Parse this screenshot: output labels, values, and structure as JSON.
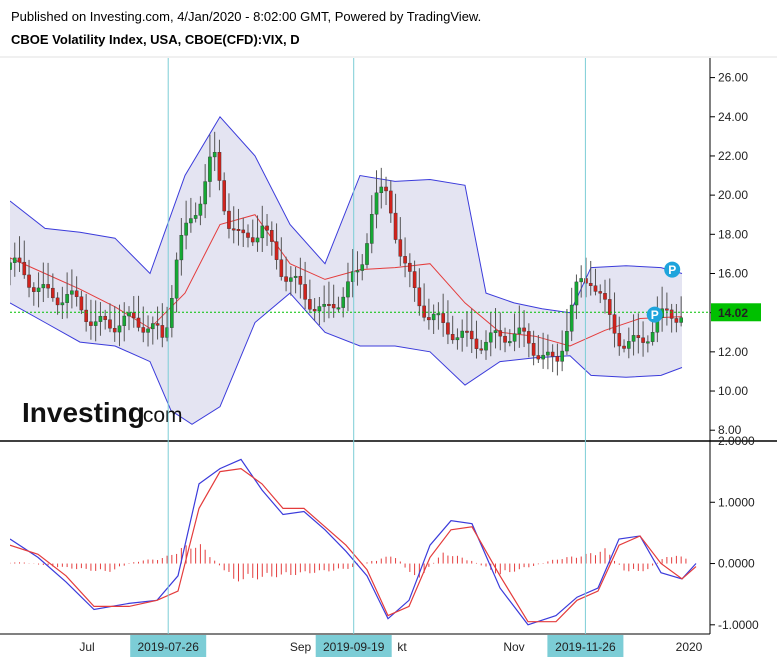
{
  "header": {
    "published": "Published on Investing.com, 4/Jan/2020 - 8:02:00 GMT, Powered by TradingView.",
    "instrument": "CBOE Volatility Index, USA, CBOE(CFD):VIX, D"
  },
  "logo": {
    "brand": "Investing",
    "suffix": ".com"
  },
  "colors": {
    "up": "#16a834",
    "down": "#d0231d",
    "band": "#3b3bdb",
    "band_fill": "#e4e4f2",
    "mid": "#e43c3c",
    "last_price": "#00c000",
    "crosshair": "#7ccdd6",
    "macd": "#3b3bdb",
    "signal": "#e43c3c",
    "p_badge": "#1ea4dc"
  },
  "chart_data": [
    {
      "type": "candlestick",
      "ylim": [
        7.5,
        27
      ],
      "y_ticks": [
        "26.00",
        "24.00",
        "22.00",
        "20.00",
        "18.00",
        "16.00",
        "14.00",
        "12.00",
        "10.00",
        "8.00"
      ],
      "last_price": 14.02,
      "last_price_label": "14.02",
      "annotations": [
        {
          "label": "P",
          "x": 0.946,
          "y": 16.2
        },
        {
          "label": "P",
          "x": 0.921,
          "y": 13.9
        }
      ],
      "series": [
        {
          "name": "close",
          "x": [
            0.0,
            0.04,
            0.08,
            0.12,
            0.16,
            0.2,
            0.22,
            0.24,
            0.27,
            0.29,
            0.31,
            0.33,
            0.36,
            0.39,
            0.42,
            0.45,
            0.48,
            0.5,
            0.52,
            0.54,
            0.56,
            0.58,
            0.6,
            0.62,
            0.64,
            0.66,
            0.7,
            0.74,
            0.78,
            0.81,
            0.83,
            0.86,
            0.88,
            0.9,
            0.92,
            0.94,
            0.96
          ],
          "values": [
            16.2,
            15.5,
            14.8,
            13.2,
            14.0,
            13.0,
            12.2,
            17.5,
            20.0,
            22.0,
            18.5,
            17.5,
            18.8,
            16.0,
            14.5,
            14.2,
            15.5,
            15.8,
            19.5,
            20.0,
            17.0,
            15.2,
            13.5,
            13.0,
            12.7,
            12.9,
            12.7,
            12.4,
            11.7,
            15.0,
            15.5,
            13.6,
            12.6,
            12.6,
            12.9,
            13.8,
            14.0
          ]
        },
        {
          "name": "upper_band",
          "x": [
            0.0,
            0.05,
            0.1,
            0.15,
            0.2,
            0.25,
            0.3,
            0.35,
            0.4,
            0.45,
            0.5,
            0.55,
            0.6,
            0.65,
            0.68,
            0.72,
            0.76,
            0.8,
            0.83,
            0.88,
            0.93,
            0.96
          ],
          "values": [
            19.7,
            18.3,
            18.1,
            17.8,
            16.0,
            21.0,
            24.0,
            22.0,
            18.5,
            16.5,
            21.0,
            20.7,
            20.8,
            20.5,
            15.0,
            14.5,
            14.2,
            14.0,
            16.3,
            16.4,
            16.3,
            16.0
          ]
        },
        {
          "name": "middle_band",
          "x": [
            0.0,
            0.05,
            0.1,
            0.15,
            0.2,
            0.25,
            0.3,
            0.35,
            0.4,
            0.45,
            0.5,
            0.55,
            0.6,
            0.65,
            0.7,
            0.75,
            0.8,
            0.85,
            0.9,
            0.96
          ],
          "values": [
            16.8,
            16.0,
            15.2,
            14.3,
            13.2,
            15.0,
            18.5,
            19.0,
            16.5,
            15.7,
            16.2,
            16.3,
            16.5,
            14.5,
            13.0,
            12.8,
            12.3,
            13.1,
            13.7,
            13.8
          ]
        },
        {
          "name": "lower_band",
          "x": [
            0.0,
            0.05,
            0.1,
            0.15,
            0.2,
            0.23,
            0.26,
            0.3,
            0.35,
            0.4,
            0.45,
            0.5,
            0.55,
            0.6,
            0.65,
            0.7,
            0.75,
            0.8,
            0.83,
            0.88,
            0.93,
            0.96
          ],
          "values": [
            14.5,
            13.5,
            12.5,
            12.3,
            11.5,
            9.0,
            8.3,
            9.2,
            13.5,
            15.0,
            13.0,
            12.3,
            12.3,
            12.0,
            10.3,
            11.5,
            11.7,
            11.8,
            10.8,
            10.7,
            10.8,
            11.2
          ]
        }
      ]
    },
    {
      "type": "line",
      "ylim": [
        -1.15,
        2.0
      ],
      "y_ticks": [
        "2.0000",
        "1.0000",
        "0.0000",
        "-1.0000"
      ],
      "x_tick_labels": [
        {
          "label": "Jul",
          "x": 0.11
        },
        {
          "label": "Sep",
          "x": 0.415
        },
        {
          "label": "kt",
          "x": 0.56
        },
        {
          "label": "Nov",
          "x": 0.72
        },
        {
          "label": "2020",
          "x": 0.97
        }
      ],
      "crosshair_labels": [
        {
          "label": "2019-07-26",
          "x": 0.226
        },
        {
          "label": "2019-09-19",
          "x": 0.491
        },
        {
          "label": "2019-11-26",
          "x": 0.822
        }
      ],
      "series": [
        {
          "name": "macd",
          "x": [
            0.0,
            0.04,
            0.08,
            0.12,
            0.17,
            0.21,
            0.24,
            0.27,
            0.3,
            0.33,
            0.36,
            0.39,
            0.42,
            0.45,
            0.48,
            0.51,
            0.54,
            0.57,
            0.6,
            0.63,
            0.66,
            0.7,
            0.74,
            0.78,
            0.81,
            0.84,
            0.87,
            0.9,
            0.93,
            0.96,
            0.98
          ],
          "values": [
            0.4,
            0.1,
            -0.3,
            -0.75,
            -0.65,
            -0.6,
            -0.2,
            1.3,
            1.55,
            1.7,
            1.2,
            0.8,
            0.85,
            0.55,
            0.2,
            -0.2,
            -0.9,
            -0.6,
            0.3,
            0.7,
            0.65,
            -0.4,
            -1.0,
            -0.85,
            -0.55,
            -0.4,
            0.4,
            0.45,
            -0.15,
            -0.25,
            0.0
          ]
        },
        {
          "name": "signal",
          "x": [
            0.0,
            0.04,
            0.08,
            0.12,
            0.17,
            0.21,
            0.24,
            0.27,
            0.3,
            0.33,
            0.36,
            0.39,
            0.42,
            0.45,
            0.48,
            0.51,
            0.54,
            0.57,
            0.6,
            0.63,
            0.66,
            0.7,
            0.74,
            0.78,
            0.81,
            0.84,
            0.87,
            0.9,
            0.93,
            0.96,
            0.98
          ],
          "values": [
            0.3,
            0.15,
            -0.2,
            -0.7,
            -0.7,
            -0.6,
            -0.45,
            0.9,
            1.5,
            1.55,
            1.3,
            0.9,
            0.9,
            0.6,
            0.3,
            -0.1,
            -0.85,
            -0.7,
            0.1,
            0.55,
            0.6,
            -0.2,
            -0.95,
            -0.95,
            -0.6,
            -0.45,
            0.3,
            0.45,
            0.0,
            -0.25,
            -0.05
          ]
        },
        {
          "name": "histogram",
          "x": [
            0.02,
            0.06,
            0.1,
            0.14,
            0.18,
            0.22,
            0.25,
            0.27,
            0.32,
            0.36,
            0.4,
            0.44,
            0.48,
            0.52,
            0.55,
            0.58,
            0.62,
            0.66,
            0.7,
            0.74,
            0.78,
            0.82,
            0.85,
            0.88,
            0.91,
            0.94,
            0.97
          ],
          "values": [
            0.02,
            -0.05,
            -0.1,
            -0.15,
            0.04,
            0.1,
            0.3,
            0.35,
            -0.3,
            -0.25,
            -0.2,
            -0.15,
            -0.1,
            0.06,
            0.15,
            -0.3,
            0.2,
            0.05,
            -0.2,
            -0.07,
            0.08,
            0.15,
            0.25,
            -0.15,
            -0.12,
            0.15,
            0.1
          ]
        }
      ]
    }
  ]
}
